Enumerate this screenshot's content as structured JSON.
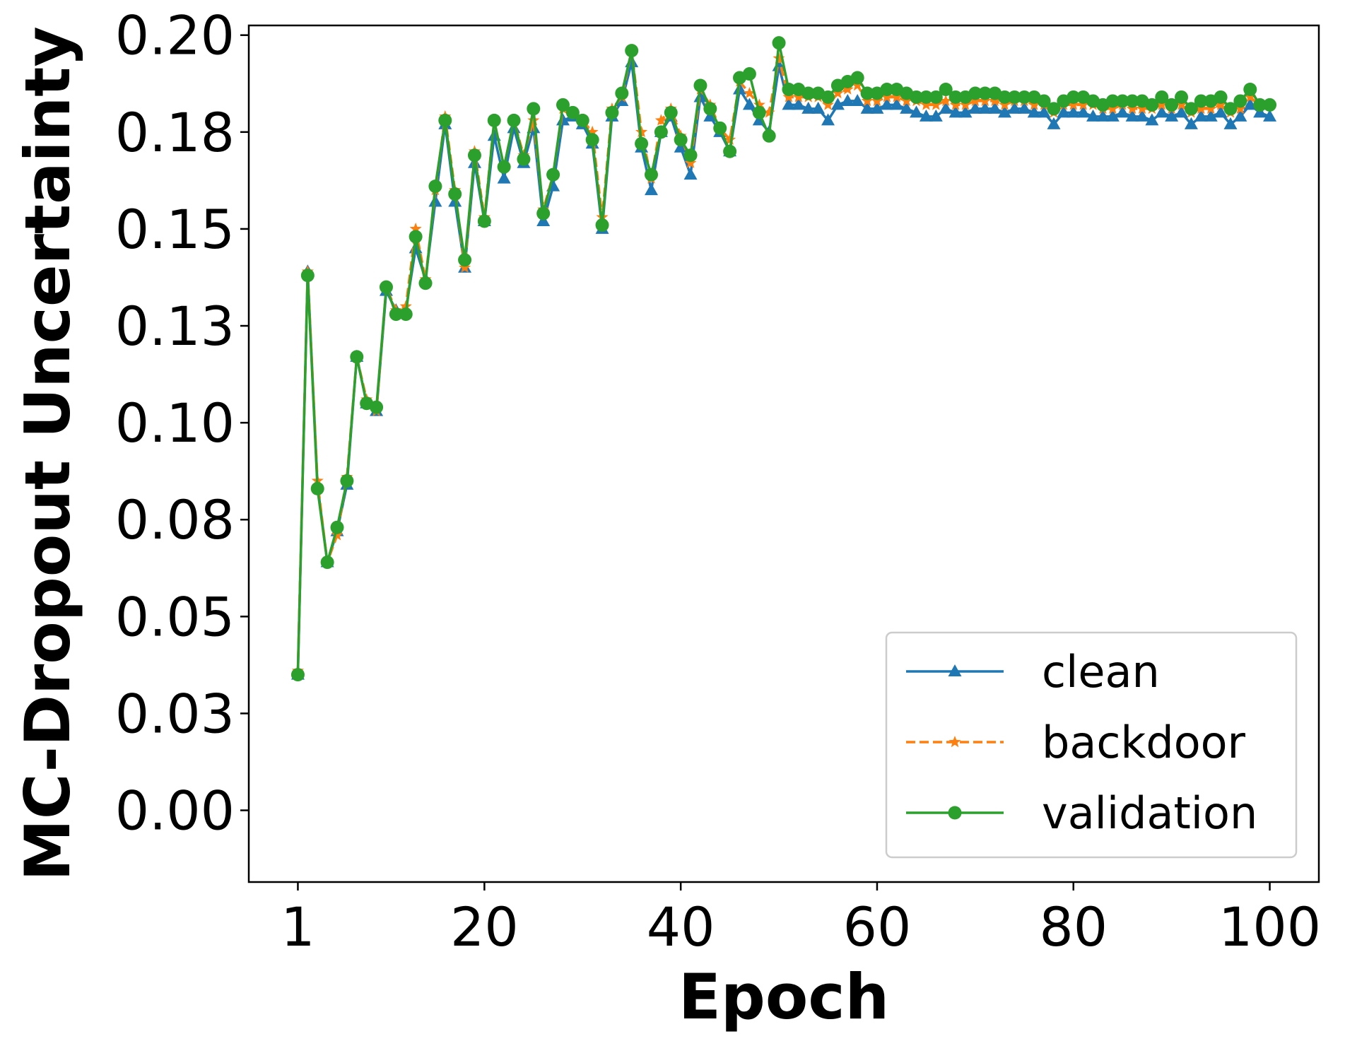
{
  "chart_data": {
    "type": "line",
    "xlabel": "Epoch",
    "ylabel": "MC-Dropout Uncertainty",
    "xlim": [
      -4.0,
      105.0
    ],
    "ylim": [
      -0.0185,
      0.2025
    ],
    "x_ticks": [
      1,
      20,
      40,
      60,
      80,
      100
    ],
    "x_tick_labels": [
      "1",
      "20",
      "40",
      "60",
      "80",
      "100"
    ],
    "y_ticks": [
      0.0,
      0.025,
      0.05,
      0.075,
      0.1,
      0.125,
      0.15,
      0.175,
      0.2
    ],
    "y_tick_labels": [
      "0.00",
      "0.03",
      "0.05",
      "0.08",
      "0.10",
      "0.13",
      "0.15",
      "0.18",
      "0.20"
    ],
    "legend_position": "lower-right",
    "grid": false,
    "x": [
      1,
      2,
      3,
      4,
      5,
      6,
      7,
      8,
      9,
      10,
      11,
      12,
      13,
      14,
      15,
      16,
      17,
      18,
      19,
      20,
      21,
      22,
      23,
      24,
      25,
      26,
      27,
      28,
      29,
      30,
      31,
      32,
      33,
      34,
      35,
      36,
      37,
      38,
      39,
      40,
      41,
      42,
      43,
      44,
      45,
      46,
      47,
      48,
      49,
      50,
      51,
      52,
      53,
      54,
      55,
      56,
      57,
      58,
      59,
      60,
      61,
      62,
      63,
      64,
      65,
      66,
      67,
      68,
      69,
      70,
      71,
      72,
      73,
      74,
      75,
      76,
      77,
      78,
      79,
      80,
      81,
      82,
      83,
      84,
      85,
      86,
      87,
      88,
      89,
      90,
      91,
      92,
      93,
      94,
      95,
      96,
      97,
      98,
      99,
      100
    ],
    "series": [
      {
        "name": "clean",
        "color": "#1f77b4",
        "line_style": "solid",
        "marker": "triangle",
        "values": [
          0.035,
          0.139,
          0.084,
          0.064,
          0.072,
          0.084,
          0.117,
          0.105,
          0.103,
          0.134,
          0.129,
          0.129,
          0.145,
          0.137,
          0.157,
          0.177,
          0.157,
          0.14,
          0.167,
          0.152,
          0.174,
          0.163,
          0.176,
          0.167,
          0.176,
          0.152,
          0.161,
          0.178,
          0.179,
          0.177,
          0.172,
          0.15,
          0.179,
          0.183,
          0.193,
          0.171,
          0.16,
          0.175,
          0.179,
          0.171,
          0.164,
          0.184,
          0.179,
          0.175,
          0.17,
          0.186,
          0.182,
          0.178,
          0.175,
          0.192,
          0.182,
          0.182,
          0.181,
          0.181,
          0.178,
          0.182,
          0.183,
          0.183,
          0.181,
          0.181,
          0.182,
          0.182,
          0.181,
          0.18,
          0.179,
          0.179,
          0.181,
          0.18,
          0.18,
          0.181,
          0.181,
          0.181,
          0.18,
          0.181,
          0.181,
          0.18,
          0.18,
          0.177,
          0.18,
          0.18,
          0.18,
          0.179,
          0.179,
          0.179,
          0.18,
          0.179,
          0.179,
          0.178,
          0.18,
          0.179,
          0.18,
          0.177,
          0.179,
          0.179,
          0.18,
          0.177,
          0.179,
          0.182,
          0.18,
          0.179
        ]
      },
      {
        "name": "backdoor",
        "color": "#ff7f0e",
        "line_style": "dashed",
        "marker": "star",
        "values": [
          0.036,
          0.139,
          0.085,
          0.064,
          0.071,
          0.086,
          0.117,
          0.106,
          0.103,
          0.135,
          0.129,
          0.13,
          0.15,
          0.137,
          0.16,
          0.179,
          0.16,
          0.14,
          0.17,
          0.153,
          0.178,
          0.166,
          0.178,
          0.169,
          0.178,
          0.155,
          0.164,
          0.181,
          0.18,
          0.178,
          0.175,
          0.153,
          0.181,
          0.184,
          0.196,
          0.175,
          0.163,
          0.178,
          0.181,
          0.174,
          0.167,
          0.186,
          0.182,
          0.176,
          0.173,
          0.188,
          0.185,
          0.182,
          0.18,
          0.194,
          0.184,
          0.184,
          0.184,
          0.184,
          0.182,
          0.185,
          0.186,
          0.187,
          0.183,
          0.183,
          0.184,
          0.184,
          0.183,
          0.183,
          0.182,
          0.182,
          0.183,
          0.182,
          0.182,
          0.183,
          0.183,
          0.183,
          0.182,
          0.183,
          0.183,
          0.182,
          0.182,
          0.18,
          0.182,
          0.182,
          0.182,
          0.182,
          0.181,
          0.181,
          0.182,
          0.181,
          0.181,
          0.181,
          0.182,
          0.181,
          0.182,
          0.18,
          0.181,
          0.181,
          0.182,
          0.18,
          0.181,
          0.184,
          0.182,
          0.182
        ]
      },
      {
        "name": "validation",
        "color": "#2ca02c",
        "line_style": "solid",
        "marker": "circle",
        "values": [
          0.035,
          0.138,
          0.083,
          0.064,
          0.073,
          0.085,
          0.117,
          0.105,
          0.104,
          0.135,
          0.128,
          0.128,
          0.148,
          0.136,
          0.161,
          0.178,
          0.159,
          0.142,
          0.169,
          0.152,
          0.178,
          0.166,
          0.178,
          0.168,
          0.181,
          0.154,
          0.164,
          0.182,
          0.18,
          0.178,
          0.173,
          0.151,
          0.18,
          0.185,
          0.196,
          0.172,
          0.164,
          0.175,
          0.18,
          0.173,
          0.169,
          0.187,
          0.181,
          0.176,
          0.17,
          0.189,
          0.19,
          0.18,
          0.174,
          0.198,
          0.186,
          0.186,
          0.185,
          0.185,
          0.184,
          0.187,
          0.188,
          0.189,
          0.185,
          0.185,
          0.186,
          0.186,
          0.185,
          0.184,
          0.184,
          0.184,
          0.186,
          0.184,
          0.184,
          0.185,
          0.185,
          0.185,
          0.184,
          0.184,
          0.184,
          0.184,
          0.183,
          0.181,
          0.183,
          0.184,
          0.184,
          0.183,
          0.182,
          0.183,
          0.183,
          0.183,
          0.183,
          0.182,
          0.184,
          0.182,
          0.184,
          0.181,
          0.183,
          0.183,
          0.184,
          0.181,
          0.183,
          0.186,
          0.182,
          0.182
        ]
      }
    ]
  }
}
